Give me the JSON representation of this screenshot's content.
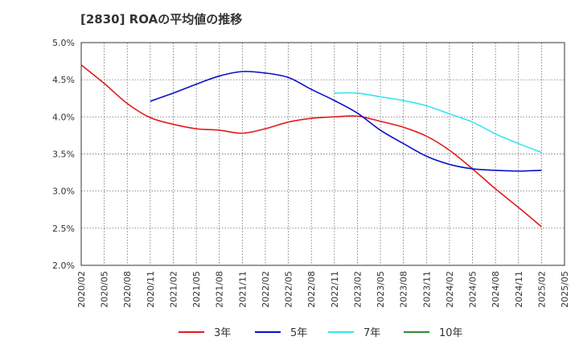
{
  "chart_data": {
    "type": "line",
    "title": "[2830]  ROAの平均値の推移",
    "xlabel": "",
    "ylabel": "",
    "ylim": [
      2.0,
      5.0
    ],
    "y_ticks": [
      "2.0%",
      "2.5%",
      "3.0%",
      "3.5%",
      "4.0%",
      "4.5%",
      "5.0%"
    ],
    "x_ticks": [
      "2020/02",
      "2020/05",
      "2020/08",
      "2020/11",
      "2021/02",
      "2021/05",
      "2021/08",
      "2021/11",
      "2022/02",
      "2022/05",
      "2022/08",
      "2022/11",
      "2023/02",
      "2023/05",
      "2023/08",
      "2023/11",
      "2024/02",
      "2024/05",
      "2024/08",
      "2024/11",
      "2025/02",
      "2025/05"
    ],
    "grid": true,
    "legend_position": "bottom",
    "series": [
      {
        "name": "3年",
        "color": "#e31a1c",
        "points": [
          [
            "2020/02",
            4.7
          ],
          [
            "2020/05",
            4.45
          ],
          [
            "2020/08",
            4.18
          ],
          [
            "2020/11",
            3.99
          ],
          [
            "2021/02",
            3.9
          ],
          [
            "2021/05",
            3.84
          ],
          [
            "2021/08",
            3.82
          ],
          [
            "2021/11",
            3.78
          ],
          [
            "2022/02",
            3.84
          ],
          [
            "2022/05",
            3.93
          ],
          [
            "2022/08",
            3.98
          ],
          [
            "2022/11",
            4.0
          ],
          [
            "2023/02",
            4.01
          ],
          [
            "2023/05",
            3.94
          ],
          [
            "2023/08",
            3.86
          ],
          [
            "2023/11",
            3.74
          ],
          [
            "2024/02",
            3.55
          ],
          [
            "2024/05",
            3.3
          ],
          [
            "2024/08",
            3.03
          ],
          [
            "2024/11",
            2.78
          ],
          [
            "2025/02",
            2.52
          ]
        ]
      },
      {
        "name": "5年",
        "color": "#0a10c8",
        "points": [
          [
            "2020/11",
            4.21
          ],
          [
            "2021/02",
            4.32
          ],
          [
            "2021/05",
            4.44
          ],
          [
            "2021/08",
            4.55
          ],
          [
            "2021/11",
            4.61
          ],
          [
            "2022/02",
            4.59
          ],
          [
            "2022/05",
            4.53
          ],
          [
            "2022/08",
            4.37
          ],
          [
            "2022/11",
            4.22
          ],
          [
            "2023/02",
            4.05
          ],
          [
            "2023/05",
            3.82
          ],
          [
            "2023/08",
            3.64
          ],
          [
            "2023/11",
            3.47
          ],
          [
            "2024/02",
            3.36
          ],
          [
            "2024/05",
            3.3
          ],
          [
            "2024/08",
            3.28
          ],
          [
            "2024/11",
            3.27
          ],
          [
            "2025/02",
            3.28
          ]
        ]
      },
      {
        "name": "7年",
        "color": "#33e5f0",
        "points": [
          [
            "2022/11",
            4.32
          ],
          [
            "2023/02",
            4.32
          ],
          [
            "2023/05",
            4.27
          ],
          [
            "2023/08",
            4.22
          ],
          [
            "2023/11",
            4.15
          ],
          [
            "2024/02",
            4.04
          ],
          [
            "2024/05",
            3.93
          ],
          [
            "2024/08",
            3.77
          ],
          [
            "2024/11",
            3.64
          ],
          [
            "2025/02",
            3.52
          ]
        ]
      },
      {
        "name": "10年",
        "color": "#2e8b2e",
        "points": []
      }
    ]
  }
}
